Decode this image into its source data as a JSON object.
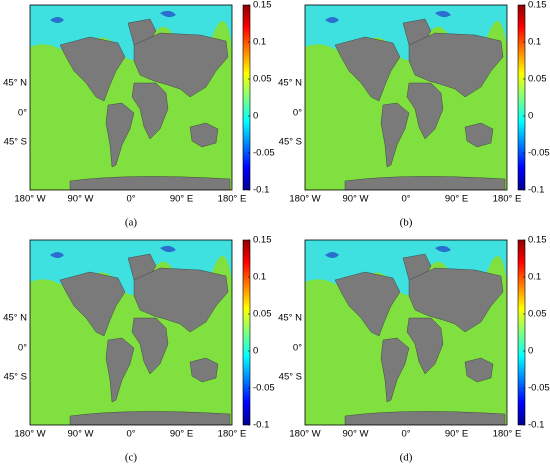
{
  "panels": [
    {
      "label": "(a)",
      "lon_labels": [
        "180° W",
        "90° W",
        "0°",
        "90° E",
        "180° E"
      ],
      "lat_labels": [
        "45° N",
        "0°",
        "45° S"
      ],
      "colorbar": {
        "clim": [
          -0.1,
          0.15
        ],
        "ticks": [
          0.15,
          0.1,
          0.05,
          0,
          -0.05,
          -0.1
        ]
      }
    },
    {
      "label": "(b)",
      "lon_labels": [
        "180° W",
        "90° W",
        "0°",
        "90° E",
        "180° E"
      ],
      "lat_labels": [
        "45° N",
        "0°",
        "45° S"
      ],
      "colorbar": {
        "clim": [
          -0.1,
          0.15
        ],
        "ticks": [
          0.15,
          0.1,
          0.05,
          0,
          -0.05,
          -0.1
        ]
      }
    },
    {
      "label": "(c)",
      "lon_labels": [
        "180° W",
        "90° W",
        "0°",
        "90° E",
        "180° E"
      ],
      "lat_labels": [
        "45° N",
        "0°",
        "45° S"
      ],
      "colorbar": {
        "clim": [
          -0.1,
          0.15
        ],
        "ticks": [
          0.15,
          0.1,
          0.05,
          0,
          -0.05,
          -0.1
        ]
      }
    },
    {
      "label": "(d)",
      "lon_labels": [
        "180° W",
        "90° W",
        "0°",
        "90° E",
        "180° E"
      ],
      "lat_labels": [
        "45° N",
        "0°",
        "45° S"
      ],
      "colorbar": {
        "clim": [
          -0.1,
          0.15
        ],
        "ticks": [
          0.15,
          0.1,
          0.05,
          0,
          -0.05,
          -0.1
        ]
      }
    }
  ]
}
